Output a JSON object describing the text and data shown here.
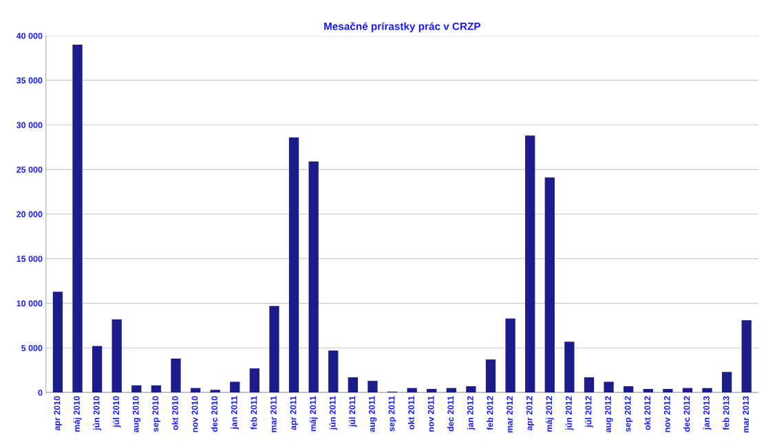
{
  "chart_data": {
    "type": "bar",
    "title": "Mesačné prírastky prác v CRZP",
    "categories": [
      "apr 2010",
      "máj 2010",
      "jún 2010",
      "júl 2010",
      "aug 2010",
      "sep 2010",
      "okt 2010",
      "nov 2010",
      "dec 2010",
      "jan 2011",
      "feb 2011",
      "mar 2011",
      "apr 2011",
      "máj 2011",
      "jún 2011",
      "júl 2011",
      "aug 2011",
      "sep 2011",
      "okt 2011",
      "nov 2011",
      "dec 2011",
      "jan 2012",
      "feb 2012",
      "mar 2012",
      "apr 2012",
      "máj 2012",
      "jún 2012",
      "júl 2012",
      "aug 2012",
      "sep 2012",
      "okt 2012",
      "nov 2012",
      "dec 2012",
      "jan 2013",
      "feb 2013",
      "mar 2013"
    ],
    "values": [
      11300,
      39000,
      5200,
      8200,
      800,
      800,
      3800,
      500,
      300,
      1200,
      2700,
      9700,
      28600,
      25900,
      4700,
      1700,
      1300,
      100,
      500,
      400,
      500,
      700,
      3700,
      8300,
      28800,
      24100,
      5700,
      1700,
      1200,
      700,
      400,
      400,
      500,
      500,
      2300,
      8100
    ],
    "color": "#1c1c8a",
    "ylim": [
      0,
      40000
    ],
    "yticks": [
      {
        "value": 0,
        "label": "0"
      },
      {
        "value": 5000,
        "label": "5 000"
      },
      {
        "value": 10000,
        "label": "10 000"
      },
      {
        "value": 15000,
        "label": "15 000"
      },
      {
        "value": 20000,
        "label": "20 000"
      },
      {
        "value": 25000,
        "label": "25 000"
      },
      {
        "value": 30000,
        "label": "30 000"
      },
      {
        "value": 35000,
        "label": "35 000"
      },
      {
        "value": 40000,
        "label": "40 000"
      }
    ],
    "grid": "y"
  }
}
